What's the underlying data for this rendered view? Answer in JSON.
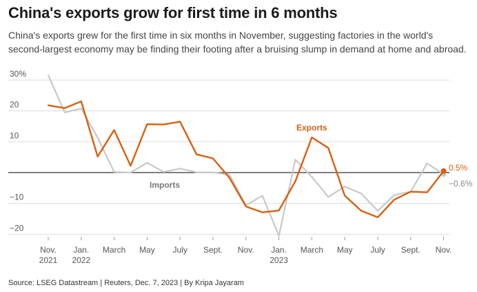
{
  "header": {
    "title": "China's exports grow for first time in 6 months",
    "subtitle": "China's exports grew for the first time in six months in November, suggesting factories in the world's second-largest economy may be finding their footing after a bruising slump in demand at home and abroad."
  },
  "source": "Source: LSEG Datastream | Reuters, Dec. 7, 2023 | By Kripa Jayaram",
  "colors": {
    "exports": "#d95f0e",
    "imports": "#c8c8c8",
    "zero_line": "#333333",
    "grid": "#dcdcdc"
  },
  "chart_data": {
    "type": "line",
    "title": "China's exports grow for first time in 6 months",
    "x": [
      "2021-11",
      "2021-12",
      "2022-01",
      "2022-02",
      "2022-03",
      "2022-04",
      "2022-05",
      "2022-06",
      "2022-07",
      "2022-08",
      "2022-09",
      "2022-10",
      "2022-11",
      "2022-12",
      "2023-01",
      "2023-02",
      "2023-03",
      "2023-04",
      "2023-05",
      "2023-06",
      "2023-07",
      "2023-08",
      "2023-09",
      "2023-10",
      "2023-11"
    ],
    "x_tick_labels": [
      {
        "month": "2021-11",
        "lines": [
          "Nov.",
          "2021"
        ]
      },
      {
        "month": "2022-01",
        "lines": [
          "Jan.",
          "2022"
        ]
      },
      {
        "month": "2022-03",
        "lines": [
          "March"
        ]
      },
      {
        "month": "2022-05",
        "lines": [
          "May"
        ]
      },
      {
        "month": "2022-07",
        "lines": [
          "July"
        ]
      },
      {
        "month": "2022-09",
        "lines": [
          "Sept."
        ]
      },
      {
        "month": "2022-11",
        "lines": [
          "Nov."
        ]
      },
      {
        "month": "2023-01",
        "lines": [
          "Jan.",
          "2023"
        ]
      },
      {
        "month": "2023-03",
        "lines": [
          "March"
        ]
      },
      {
        "month": "2023-05",
        "lines": [
          "May"
        ]
      },
      {
        "month": "2023-07",
        "lines": [
          "July"
        ]
      },
      {
        "month": "2023-09",
        "lines": [
          "Sept."
        ]
      },
      {
        "month": "2023-11",
        "lines": [
          "Nov."
        ]
      }
    ],
    "y_ticks": [
      {
        "value": 30,
        "label": "30%"
      },
      {
        "value": 20,
        "label": "20"
      },
      {
        "value": 10,
        "label": "10"
      },
      {
        "value": -10,
        "label": "−10"
      },
      {
        "value": -20,
        "label": "−20"
      }
    ],
    "ylim": [
      -21,
      31
    ],
    "grid": true,
    "series": [
      {
        "name": "Exports",
        "key": "exports",
        "values": [
          21.8,
          20.9,
          23.1,
          5.2,
          13.8,
          2.2,
          15.7,
          15.6,
          16.5,
          5.9,
          4.6,
          -1.7,
          -11.0,
          -12.9,
          -12.3,
          -2.8,
          11.4,
          8.0,
          -7.5,
          -12.4,
          -14.5,
          -8.8,
          -6.2,
          -6.4,
          0.5
        ],
        "end_label": "0.5%"
      },
      {
        "name": "Imports",
        "key": "imports",
        "values": [
          31.6,
          19.5,
          20.8,
          11.3,
          0.2,
          0.0,
          3.2,
          0.2,
          1.3,
          0.1,
          0.1,
          -0.7,
          -10.6,
          -7.5,
          -20.5,
          4.2,
          -1.4,
          -7.9,
          -4.5,
          -6.8,
          -12.4,
          -7.3,
          -6.2,
          3.0,
          -0.6
        ],
        "end_label": "−0.6%"
      }
    ]
  }
}
